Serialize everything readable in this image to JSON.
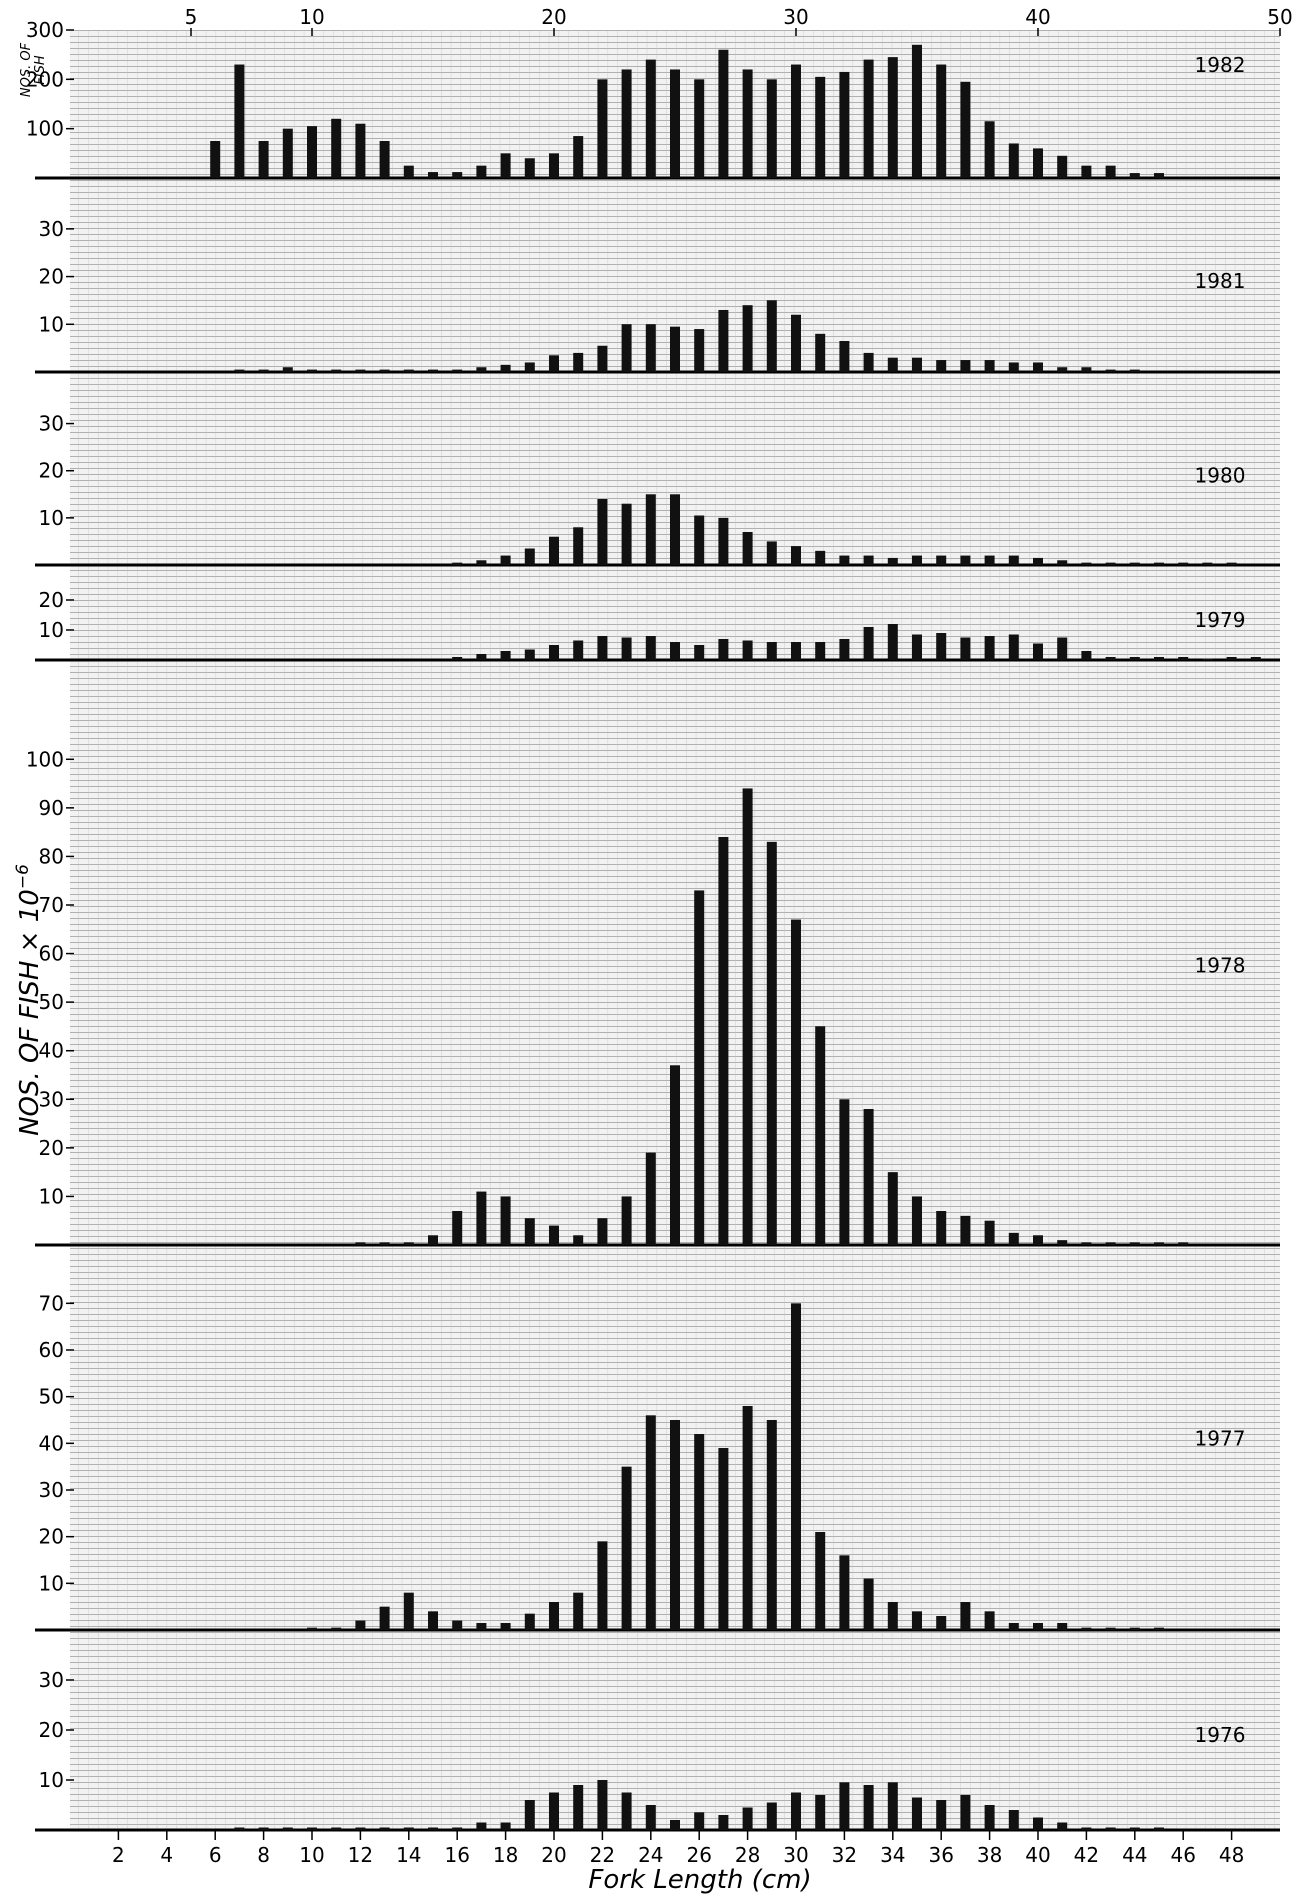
{
  "figure": {
    "ylabel": "NOS. OF FISH × 10",
    "ylabel_exponent": "−6",
    "xlabel": "Fork Length (cm)",
    "top_ylabel_line1": "NOS. OF",
    "top_ylabel_line2": "FISH"
  },
  "chart_data": [
    {
      "type": "bar",
      "year": "1982",
      "x": [
        6,
        7,
        8,
        9,
        10,
        11,
        12,
        13,
        14,
        15,
        16,
        17,
        18,
        19,
        20,
        21,
        22,
        23,
        24,
        25,
        26,
        27,
        28,
        29,
        30,
        31,
        32,
        33,
        34,
        35,
        36,
        37,
        38,
        39,
        40,
        41,
        42,
        43,
        44,
        45
      ],
      "values": [
        75,
        230,
        75,
        100,
        105,
        120,
        110,
        75,
        25,
        12,
        12,
        25,
        50,
        40,
        50,
        85,
        200,
        220,
        240,
        220,
        200,
        260,
        220,
        200,
        230,
        205,
        215,
        240,
        245,
        270,
        230,
        195,
        115,
        70,
        60,
        45,
        25,
        25,
        10,
        10
      ],
      "ylim": [
        0,
        300
      ],
      "yticks": [
        100,
        200,
        300
      ],
      "xlim": [
        0,
        50
      ],
      "xticks_top": [
        5,
        10,
        20,
        30,
        40,
        50
      ]
    },
    {
      "type": "bar",
      "year": "1981",
      "x": [
        7,
        8,
        9,
        10,
        11,
        12,
        13,
        14,
        15,
        16,
        17,
        18,
        19,
        20,
        21,
        22,
        23,
        24,
        25,
        26,
        27,
        28,
        29,
        30,
        31,
        32,
        33,
        34,
        35,
        36,
        37,
        38,
        39,
        40,
        41,
        42,
        43,
        44
      ],
      "values": [
        0.5,
        0.5,
        1,
        0.5,
        0.5,
        0.5,
        0.5,
        0.5,
        0.5,
        0.5,
        1,
        1.5,
        2,
        3.5,
        4,
        5.5,
        10,
        10,
        9.5,
        9,
        13,
        14,
        15,
        12,
        8,
        6.5,
        4,
        3,
        3,
        2.5,
        2.5,
        2.5,
        2,
        2,
        1,
        1,
        0.5,
        0.5
      ],
      "ylim": [
        0,
        35
      ],
      "yticks": [
        10,
        20,
        30
      ]
    },
    {
      "type": "bar",
      "year": "1980",
      "x": [
        16,
        17,
        18,
        19,
        20,
        21,
        22,
        23,
        24,
        25,
        26,
        27,
        28,
        29,
        30,
        31,
        32,
        33,
        34,
        35,
        36,
        37,
        38,
        39,
        40,
        41,
        42,
        43,
        44,
        45,
        46,
        47,
        48
      ],
      "values": [
        0.5,
        1,
        2,
        3.5,
        6,
        8,
        14,
        13,
        15,
        15,
        10.5,
        10,
        7,
        5,
        4,
        3,
        2,
        2,
        1.5,
        2,
        2,
        2,
        2,
        2,
        1.5,
        1,
        0.5,
        0.5,
        0.5,
        0.5,
        0.5,
        0.5,
        0.5
      ],
      "ylim": [
        0,
        35
      ],
      "yticks": [
        10,
        20,
        30
      ]
    },
    {
      "type": "bar",
      "year": "1979",
      "x": [
        16,
        17,
        18,
        19,
        20,
        21,
        22,
        23,
        24,
        25,
        26,
        27,
        28,
        29,
        30,
        31,
        32,
        33,
        34,
        35,
        36,
        37,
        38,
        39,
        40,
        41,
        42,
        43,
        44,
        45,
        46,
        47,
        48,
        49
      ],
      "values": [
        1,
        2,
        3,
        3.5,
        5,
        6.5,
        8,
        7.5,
        8,
        6,
        5,
        7,
        6.5,
        6,
        6,
        6,
        7,
        11,
        12,
        8.5,
        9,
        7.5,
        8,
        8.5,
        5.5,
        7.5,
        3,
        1,
        1,
        1,
        1,
        0.5,
        1,
        1
      ],
      "ylim": [
        0,
        25
      ],
      "yticks": [
        10,
        20
      ]
    },
    {
      "type": "bar",
      "year": "1978",
      "x": [
        12,
        13,
        14,
        15,
        16,
        17,
        18,
        19,
        20,
        21,
        22,
        23,
        24,
        25,
        26,
        27,
        28,
        29,
        30,
        31,
        32,
        33,
        34,
        35,
        36,
        37,
        38,
        39,
        40,
        41,
        42,
        43,
        44,
        45,
        46
      ],
      "values": [
        0.5,
        0.5,
        0.5,
        2,
        7,
        11,
        10,
        5.5,
        4,
        2,
        5.5,
        10,
        19,
        37,
        73,
        84,
        94,
        83,
        67,
        45,
        30,
        28,
        15,
        10,
        7,
        6,
        5,
        2.5,
        2,
        1,
        0.5,
        0.5,
        0.5,
        0.5,
        0.5
      ],
      "ylim": [
        0,
        105
      ],
      "yticks": [
        10,
        20,
        30,
        40,
        50,
        60,
        70,
        80,
        90,
        100
      ]
    },
    {
      "type": "bar",
      "year": "1977",
      "x": [
        10,
        11,
        12,
        13,
        14,
        15,
        16,
        17,
        18,
        19,
        20,
        21,
        22,
        23,
        24,
        25,
        26,
        27,
        28,
        29,
        30,
        31,
        32,
        33,
        34,
        35,
        36,
        37,
        38,
        39,
        40,
        41,
        42,
        43,
        44,
        45
      ],
      "values": [
        0.5,
        0.5,
        2,
        5,
        8,
        4,
        2,
        1.5,
        1.5,
        3.5,
        6,
        8,
        19,
        35,
        46,
        45,
        42,
        39,
        48,
        45,
        70,
        21,
        16,
        11,
        6,
        4,
        3,
        6,
        4,
        1.5,
        1.5,
        1.5,
        0.5,
        0.5,
        0.5,
        0.5
      ],
      "ylim": [
        0,
        75
      ],
      "yticks": [
        10,
        20,
        30,
        40,
        50,
        60,
        70
      ]
    },
    {
      "type": "bar",
      "year": "1976",
      "x": [
        7,
        8,
        9,
        10,
        11,
        12,
        13,
        14,
        15,
        16,
        17,
        18,
        19,
        20,
        21,
        22,
        23,
        24,
        25,
        26,
        27,
        28,
        29,
        30,
        31,
        32,
        33,
        34,
        35,
        36,
        37,
        38,
        39,
        40,
        41,
        42,
        43,
        44,
        45
      ],
      "values": [
        0.5,
        0.5,
        0.5,
        0.5,
        0.5,
        0.5,
        0.5,
        0.5,
        0.5,
        0.5,
        1.5,
        1.5,
        6,
        7.5,
        9,
        10,
        7.5,
        5,
        2,
        3.5,
        3,
        4.5,
        5.5,
        7.5,
        7,
        9.5,
        9,
        9.5,
        6.5,
        6,
        7,
        5,
        4,
        2.5,
        1.5,
        0.5,
        0.5,
        0.5,
        0.5
      ],
      "ylim": [
        0,
        35
      ],
      "yticks": [
        10,
        20,
        30
      ],
      "xticks_bottom": [
        2,
        4,
        6,
        8,
        10,
        12,
        14,
        16,
        18,
        20,
        22,
        24,
        26,
        28,
        30,
        32,
        34,
        36,
        38,
        40,
        42,
        44,
        46,
        48
      ]
    }
  ]
}
